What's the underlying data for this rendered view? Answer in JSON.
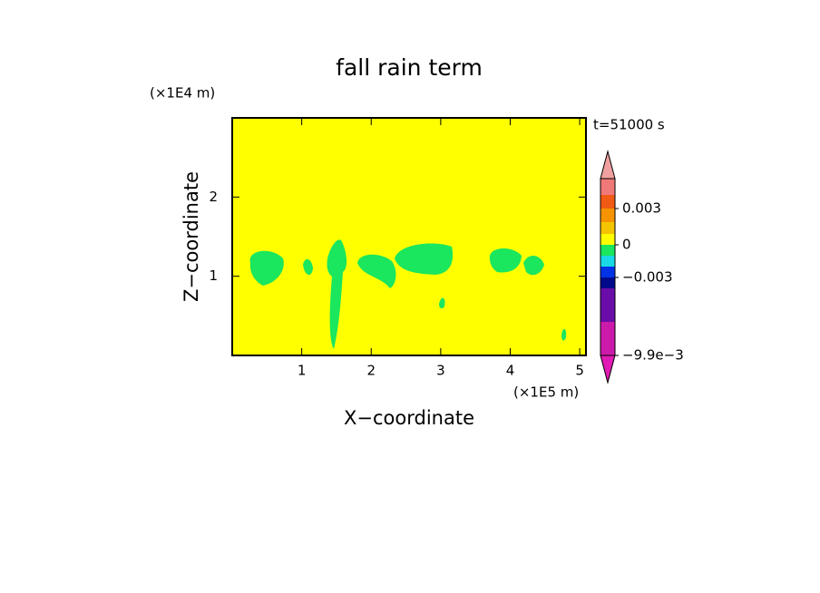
{
  "chart_data": {
    "type": "contour",
    "title": "fall rain term",
    "time_label": "t=51000 s",
    "x_label": "X−coordinate",
    "x_unit": "(×1E5 m)",
    "y_label": "Z−coordinate",
    "y_unit": "(×1E4 m)",
    "xlim": [
      0,
      5.09
    ],
    "xticks": [
      1,
      2,
      3,
      4,
      5
    ],
    "ylim": [
      0,
      3
    ],
    "yticks": [
      1,
      2
    ],
    "colorbar": {
      "levels": [
        -0.0099,
        -0.0066,
        -0.0045,
        -0.003,
        -0.002,
        -0.001,
        0,
        0.001,
        0.002,
        0.003,
        0.004,
        0.005
      ],
      "colors": [
        "#cc1aaa",
        "#6a0da8",
        "#000a8a",
        "#0033e6",
        "#1ad9e6",
        "#1ae65e",
        "#ffff00",
        "#f5c400",
        "#f59400",
        "#f05a14",
        "#f07878"
      ],
      "under_color": "#e01ab4",
      "over_color": "#f0a0a0",
      "ticks": [
        {
          "value": -0.0099,
          "label": "−9.9e−3"
        },
        {
          "value": -0.003,
          "label": "−0.003"
        },
        0,
        0.003
      ]
    }
  }
}
